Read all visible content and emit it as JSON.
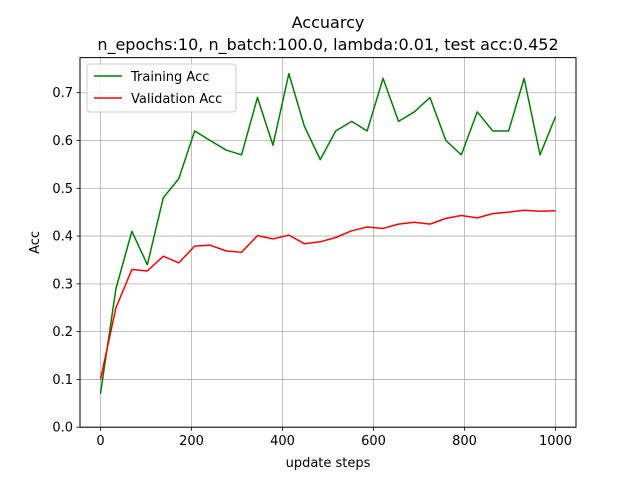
{
  "chart_data": {
    "type": "line",
    "title": "Accuarcy",
    "subtitle": "n_epochs:10, n_batch:100.0, lambda:0.01, test acc:0.452",
    "xlabel": "update steps",
    "ylabel": "Acc",
    "xlim": [
      -45,
      1045
    ],
    "ylim": [
      0.0,
      0.7735
    ],
    "xticks": [
      0,
      200,
      400,
      600,
      800,
      1000
    ],
    "xtick_labels": [
      "0",
      "200",
      "400",
      "600",
      "800",
      "1000"
    ],
    "yticks": [
      0.0,
      0.1,
      0.2,
      0.3,
      0.4,
      0.5,
      0.6,
      0.7
    ],
    "ytick_labels": [
      "0.0",
      "0.1",
      "0.2",
      "0.3",
      "0.4",
      "0.5",
      "0.6",
      "0.7"
    ],
    "grid": true,
    "legend_position": "upper-left",
    "x": [
      0,
      34,
      69,
      103,
      138,
      172,
      207,
      241,
      276,
      310,
      345,
      379,
      414,
      448,
      483,
      517,
      552,
      586,
      621,
      655,
      690,
      724,
      759,
      793,
      828,
      862,
      897,
      931,
      966,
      1000
    ],
    "series": [
      {
        "name": "Training Acc",
        "color": "#008000",
        "values": [
          0.07,
          0.29,
          0.41,
          0.34,
          0.48,
          0.52,
          0.62,
          0.6,
          0.58,
          0.57,
          0.69,
          0.59,
          0.74,
          0.63,
          0.56,
          0.62,
          0.64,
          0.62,
          0.73,
          0.64,
          0.66,
          0.69,
          0.6,
          0.57,
          0.66,
          0.62,
          0.62,
          0.73,
          0.57,
          0.65
        ]
      },
      {
        "name": "Validation Acc",
        "color": "#ff0000",
        "values": [
          0.1,
          0.25,
          0.33,
          0.327,
          0.358,
          0.344,
          0.379,
          0.381,
          0.369,
          0.366,
          0.401,
          0.394,
          0.402,
          0.384,
          0.388,
          0.397,
          0.411,
          0.419,
          0.416,
          0.425,
          0.429,
          0.425,
          0.437,
          0.443,
          0.438,
          0.447,
          0.45,
          0.454,
          0.452,
          0.453
        ]
      }
    ]
  }
}
